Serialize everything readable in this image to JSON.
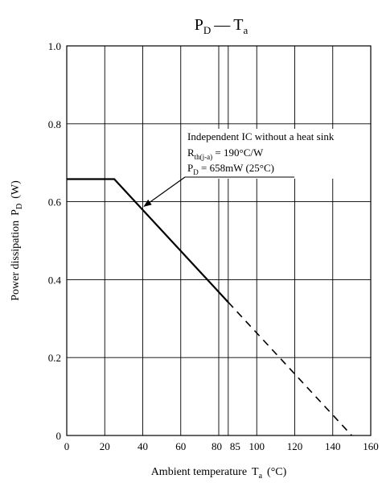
{
  "chart_data": {
    "type": "line",
    "title": {
      "symbol": "P",
      "symbol_sub": "D",
      "separator": "—",
      "var": "T",
      "var_sub": "a"
    },
    "xlabel": {
      "text": "Ambient temperature",
      "symbol": "T",
      "symbol_sub": "a",
      "unit": "(°C)"
    },
    "ylabel": {
      "text": "Power dissipation",
      "symbol": "P",
      "symbol_sub": "D",
      "unit": "(W)"
    },
    "xlim": [
      0,
      160
    ],
    "ylim": [
      0,
      1.0
    ],
    "grid": true,
    "x_gridlines": [
      0,
      20,
      40,
      60,
      80,
      85,
      100,
      120,
      140,
      160
    ],
    "y_gridlines": [
      0,
      0.2,
      0.4,
      0.6,
      0.8,
      1.0
    ],
    "x_ticks": [
      "0",
      "20",
      "40",
      "60",
      "80",
      "85",
      "100",
      "120",
      "140",
      "160"
    ],
    "y_ticks": [
      "0",
      "0.2",
      "0.4",
      "0.6",
      "0.8",
      "1.0"
    ],
    "series": [
      {
        "style": "solid",
        "x": [
          0,
          25,
          85
        ],
        "y": [
          0.658,
          0.658,
          0.342
        ]
      },
      {
        "style": "dashed",
        "x": [
          85,
          150
        ],
        "y": [
          0.342,
          0
        ]
      }
    ],
    "annotation": {
      "line1": "Independent IC without a heat sink",
      "line2_symbol": "R",
      "line2_sub": "th(j-a)",
      "line2_rest": " = 190°C/W",
      "line3_symbol": "P",
      "line3_sub": "D",
      "line3_rest": " = 658mW (25°C)",
      "arrow_target": {
        "x": 39,
        "y": 0.584
      }
    },
    "line_color": "#000000",
    "grid_color": "#000000"
  }
}
